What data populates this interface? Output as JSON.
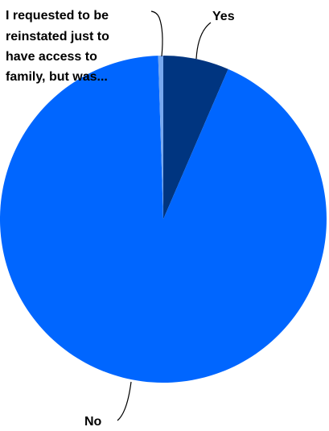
{
  "chart_data": {
    "type": "pie",
    "title": "",
    "legend": "none",
    "slices": [
      {
        "label": "Yes",
        "value": 6.5,
        "color": "#003580"
      },
      {
        "label": "No",
        "value": 93.0,
        "color": "#0066FF"
      },
      {
        "label_lines": [
          "I requested to be",
          "reinstated just to",
          "have access to",
          "family, but was..."
        ],
        "value": 0.5,
        "color": "#77A8EF"
      }
    ]
  }
}
